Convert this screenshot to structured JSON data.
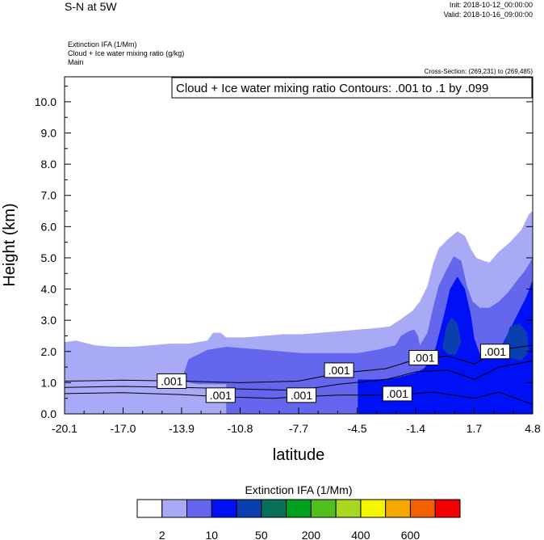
{
  "header": {
    "title": "S-N at 5W",
    "init": "Init: 2018-10-12_00:00:00",
    "valid": "Valid: 2018-10-16_09:00:00",
    "meta": [
      "Extinction IFA   (1/Mm)",
      "Cloud + Ice water mixing ratio   (g/kg)",
      "Main"
    ],
    "cross_section": "Cross-Section: (269,231) to (269,485)"
  },
  "chart_data": {
    "type": "contour",
    "title": "Cloud + Ice water mixing ratio Contours: .001 to .1 by .099",
    "xlabel": "latitude",
    "ylabel": "Height (km)",
    "x_ticks": [
      "-20.1",
      "-17.0",
      "-13.9",
      "-10.8",
      "-7.7",
      "-4.5",
      "-1.4",
      "1.7",
      "4.8"
    ],
    "xlim": [
      -20.1,
      4.8
    ],
    "y_ticks": [
      "0.0",
      "1.0",
      "2.0",
      "3.0",
      "4.0",
      "5.0",
      "6.0",
      "7.0",
      "8.0",
      "9.0",
      "10.0"
    ],
    "ylim": [
      0,
      10.8
    ],
    "contour_labels": [
      {
        "text": ".001",
        "lat": -14.4,
        "h": 1.05
      },
      {
        "text": ".001",
        "lat": -11.8,
        "h": 0.6
      },
      {
        "text": ".001",
        "lat": -7.5,
        "h": 0.6
      },
      {
        "text": ".001",
        "lat": -5.5,
        "h": 1.4
      },
      {
        "text": ".001",
        "lat": -2.4,
        "h": 0.65
      },
      {
        "text": ".001",
        "lat": -1.0,
        "h": 1.8
      },
      {
        "text": ".001",
        "lat": 2.8,
        "h": 2.0
      }
    ],
    "fill_regions": [
      {
        "level": 1,
        "color": "#a8aaf5",
        "points": [
          [
            -20.1,
            2.3
          ],
          [
            -19.5,
            2.35
          ],
          [
            -18.5,
            2.2
          ],
          [
            -17.5,
            2.15
          ],
          [
            -16.5,
            2.15
          ],
          [
            -15.5,
            2.2
          ],
          [
            -14.5,
            2.25
          ],
          [
            -13.5,
            2.25
          ],
          [
            -12.5,
            2.35
          ],
          [
            -12.2,
            2.6
          ],
          [
            -11.8,
            2.6
          ],
          [
            -11.5,
            2.45
          ],
          [
            -10.5,
            2.45
          ],
          [
            -9.5,
            2.5
          ],
          [
            -8.5,
            2.55
          ],
          [
            -7.5,
            2.55
          ],
          [
            -6.5,
            2.6
          ],
          [
            -5.5,
            2.65
          ],
          [
            -4.5,
            2.7
          ],
          [
            -3.5,
            2.75
          ],
          [
            -2.8,
            2.8
          ],
          [
            -2.3,
            3.0
          ],
          [
            -1.6,
            3.3
          ],
          [
            -1.2,
            3.6
          ],
          [
            -0.8,
            4.1
          ],
          [
            -0.5,
            4.8
          ],
          [
            -0.2,
            5.3
          ],
          [
            0.3,
            5.6
          ],
          [
            0.8,
            5.85
          ],
          [
            1.2,
            5.7
          ],
          [
            1.5,
            5.3
          ],
          [
            1.8,
            5.0
          ],
          [
            2.2,
            4.9
          ],
          [
            2.5,
            4.85
          ],
          [
            3.0,
            5.2
          ],
          [
            3.6,
            5.5
          ],
          [
            4.2,
            5.9
          ],
          [
            4.6,
            6.4
          ],
          [
            4.8,
            6.5
          ],
          [
            4.8,
            0
          ],
          [
            -20.1,
            0
          ]
        ]
      },
      {
        "level": 2,
        "color": "#6467ee",
        "points": [
          [
            -13.9,
            1.05
          ],
          [
            -13.5,
            1.75
          ],
          [
            -12.5,
            2.05
          ],
          [
            -11.5,
            2.15
          ],
          [
            -10.5,
            2.1
          ],
          [
            -9.5,
            2.05
          ],
          [
            -8.5,
            2.0
          ],
          [
            -7.5,
            1.95
          ],
          [
            -6.5,
            1.95
          ],
          [
            -5.5,
            1.95
          ],
          [
            -4.5,
            1.95
          ],
          [
            -3.5,
            2.05
          ],
          [
            -2.5,
            2.2
          ],
          [
            -2.2,
            2.5
          ],
          [
            -1.8,
            2.65
          ],
          [
            -1.5,
            2.7
          ],
          [
            -1.3,
            2.5
          ],
          [
            -1.2,
            2.2
          ],
          [
            -0.8,
            2.6
          ],
          [
            -0.5,
            3.4
          ],
          [
            -0.2,
            4.1
          ],
          [
            0.2,
            4.6
          ],
          [
            0.6,
            5.05
          ],
          [
            1.0,
            4.9
          ],
          [
            1.3,
            4.1
          ],
          [
            1.6,
            3.6
          ],
          [
            2.0,
            3.4
          ],
          [
            2.5,
            3.4
          ],
          [
            3.0,
            3.6
          ],
          [
            3.5,
            3.9
          ],
          [
            4.0,
            4.3
          ],
          [
            4.4,
            4.6
          ],
          [
            4.8,
            5.0
          ],
          [
            4.8,
            0
          ],
          [
            -11.5,
            0
          ],
          [
            -11.5,
            0.95
          ],
          [
            -13.0,
            0.95
          ]
        ]
      },
      {
        "level": 3,
        "color": "#0010f5",
        "points": [
          [
            -4.5,
            0
          ],
          [
            -4.5,
            1.1
          ],
          [
            -3.5,
            1.1
          ],
          [
            -2.5,
            1.15
          ],
          [
            -1.5,
            1.3
          ],
          [
            -1.0,
            1.45
          ],
          [
            -0.5,
            1.8
          ],
          [
            -0.2,
            2.5
          ],
          [
            0.1,
            3.2
          ],
          [
            0.4,
            4.0
          ],
          [
            0.8,
            4.4
          ],
          [
            1.2,
            4.0
          ],
          [
            1.5,
            3.2
          ],
          [
            1.7,
            2.4
          ],
          [
            2.0,
            1.9
          ],
          [
            2.5,
            1.8
          ],
          [
            3.0,
            2.0
          ],
          [
            3.5,
            2.6
          ],
          [
            4.0,
            3.2
          ],
          [
            4.5,
            3.8
          ],
          [
            4.8,
            4.3
          ],
          [
            4.8,
            0
          ]
        ]
      },
      {
        "level": 4,
        "color": "#0a3fb0",
        "points": [
          [
            0.0,
            2.1
          ],
          [
            0.2,
            2.8
          ],
          [
            0.5,
            3.1
          ],
          [
            0.8,
            2.9
          ],
          [
            1.0,
            2.3
          ],
          [
            0.7,
            1.9
          ],
          [
            0.3,
            1.9
          ]
        ]
      },
      {
        "level": 4,
        "color": "#0a3fb0",
        "points": [
          [
            3.2,
            2.1
          ],
          [
            3.6,
            2.8
          ],
          [
            4.1,
            2.9
          ],
          [
            4.5,
            2.6
          ],
          [
            4.6,
            2.0
          ],
          [
            4.2,
            1.7
          ],
          [
            3.6,
            1.8
          ]
        ]
      }
    ],
    "legend": {
      "title": "Extinction IFA  (1/Mm)",
      "colors": [
        "#ffffff",
        "#a8aaf5",
        "#6467ee",
        "#0010f5",
        "#0a3fb0",
        "#087058",
        "#00a020",
        "#50c020",
        "#a8d820",
        "#f5f500",
        "#f5a800",
        "#f56000",
        "#f50000"
      ],
      "tick_labels": [
        "2",
        "10",
        "50",
        "200",
        "400",
        "600"
      ]
    }
  }
}
